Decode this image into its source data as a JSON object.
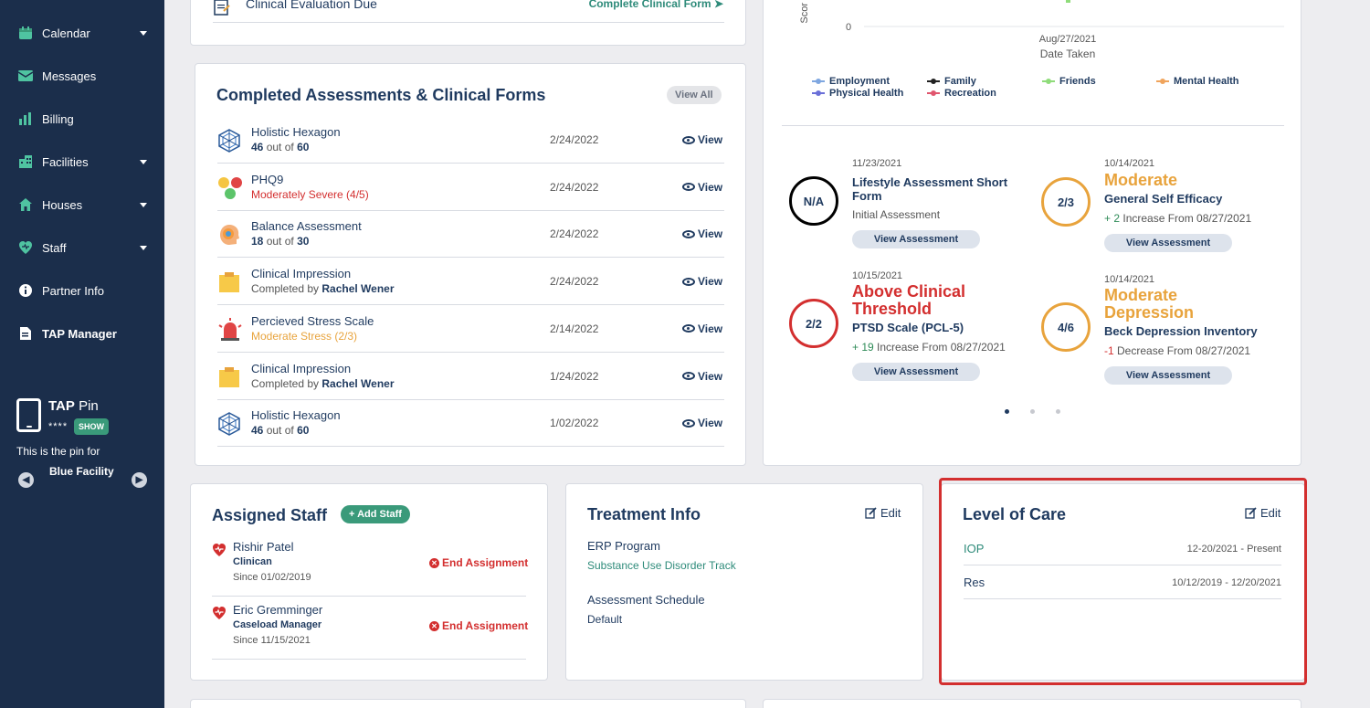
{
  "sidebar": {
    "items": [
      {
        "label": "Calendar",
        "icon": "calendar-icon",
        "has_caret": true
      },
      {
        "label": "Messages",
        "icon": "mail-icon",
        "has_caret": false
      },
      {
        "label": "Billing",
        "icon": "bar-chart-icon",
        "has_caret": false
      },
      {
        "label": "Facilities",
        "icon": "building-icon",
        "has_caret": true
      },
      {
        "label": "Houses",
        "icon": "house-icon",
        "has_caret": true
      },
      {
        "label": "Staff",
        "icon": "heart-shield-icon",
        "has_caret": true
      },
      {
        "label": "Partner Info",
        "icon": "info-icon",
        "has_caret": false
      },
      {
        "label": "TAP Manager",
        "icon": "document-icon",
        "has_caret": false
      }
    ],
    "tap_pin": {
      "title_bold": "TAP",
      "title_rest": "Pin",
      "pin_masked": "****",
      "show_label": "SHOW",
      "desc": "This is the pin for",
      "facility": "Blue Facility"
    }
  },
  "top_card": {
    "item_label": "Clinical Evaluation Due",
    "action_label": "Complete Clinical Form"
  },
  "assessments": {
    "title": "Completed Assessments & Clinical Forms",
    "view_all": "View All",
    "view_label": "View",
    "rows": [
      {
        "name": "Holistic Hexagon",
        "score": "46",
        "mid": "out of",
        "total": "60",
        "date": "2/24/2022",
        "icon": "hexagon-icon"
      },
      {
        "name": "PHQ9",
        "status": "Moderately Severe (4/5)",
        "status_color": "#d32f2f",
        "date": "2/24/2022",
        "icon": "faces-icon"
      },
      {
        "name": "Balance Assessment",
        "score": "18",
        "mid": "out of",
        "total": "30",
        "date": "2/24/2022",
        "icon": "head-icon"
      },
      {
        "name": "Clinical Impression",
        "prefix": "Completed by",
        "by": "Rachel Wener",
        "date": "2/24/2022",
        "icon": "note-icon"
      },
      {
        "name": "Percieved Stress Scale",
        "status": "Moderate Stress (2/3)",
        "status_color": "#e8a33c",
        "date": "2/14/2022",
        "icon": "alarm-icon"
      },
      {
        "name": "Clinical Impression",
        "prefix": "Completed by",
        "by": "Rachel Wener",
        "date": "1/24/2022",
        "icon": "note-icon"
      },
      {
        "name": "Holistic Hexagon",
        "score": "46",
        "mid": "out of",
        "total": "60",
        "date": "1/02/2022",
        "icon": "hexagon-icon"
      }
    ]
  },
  "chart_data": {
    "type": "line",
    "y_tick": "0",
    "x_tick": "Aug/27/2021",
    "xlabel": "Date Taken",
    "ylabel_fragment": "Scor",
    "legend": [
      {
        "name": "Employment",
        "color": "#7fa7e0"
      },
      {
        "name": "Family",
        "color": "#222222"
      },
      {
        "name": "Friends",
        "color": "#8fdc7a"
      },
      {
        "name": "Mental Health",
        "color": "#f0a45c"
      },
      {
        "name": "Physical Health",
        "color": "#6a6fd8"
      },
      {
        "name": "Recreation",
        "color": "#e0566e"
      }
    ]
  },
  "results": [
    {
      "ring": "N/A",
      "ring_color": "#000000",
      "date": "11/23/2021",
      "level": "",
      "name": "Lifestyle Assessment Short Form",
      "change_prefix": "",
      "change_num": "",
      "change_text": "Initial Assessment",
      "button": "View Assessment"
    },
    {
      "ring": "2/3",
      "ring_color": "#e8a33c",
      "date": "10/14/2021",
      "level": "Moderate",
      "level_color": "#e8a33c",
      "name": "General Self Efficacy",
      "change_prefix": "+ ",
      "change_num": "2",
      "change_num_color": "#2e8b57",
      "change_text": " Increase From 08/27/2021",
      "button": "View Assessment"
    },
    {
      "ring": "2/2",
      "ring_color": "#d32f2f",
      "date": "10/15/2021",
      "level": "Above Clinical Threshold",
      "level_color": "#d32f2f",
      "name": "PTSD Scale (PCL-5)",
      "change_prefix": "+ ",
      "change_num": "19",
      "change_num_color": "#2e8b57",
      "change_text": " Increase From 08/27/2021",
      "button": "View Assessment"
    },
    {
      "ring": "4/6",
      "ring_color": "#e8a33c",
      "date": "10/14/2021",
      "level": "Moderate Depression",
      "level_color": "#e8a33c",
      "name": "Beck Depression Inventory",
      "change_prefix": "",
      "change_num": "-1",
      "change_num_color": "#d32f2f",
      "change_text": " Decrease From 08/27/2021",
      "button": "View Assessment"
    }
  ],
  "assigned_staff": {
    "title": "Assigned Staff",
    "add_label": "+ Add Staff",
    "end_label": "End Assignment",
    "rows": [
      {
        "name": "Rishir Patel",
        "role": "Clinican",
        "since": "Since 01/02/2019"
      },
      {
        "name": "Eric Gremminger",
        "role": "Caseload Manager",
        "since": "Since 11/15/2021"
      }
    ]
  },
  "treatment_info": {
    "title": "Treatment Info",
    "edit_label": "Edit",
    "program_label": "ERP Program",
    "program_value": "Substance Use Disorder Track",
    "schedule_label": "Assessment Schedule",
    "schedule_value": "Default"
  },
  "level_of_care": {
    "title": "Level of Care",
    "edit_label": "Edit",
    "rows": [
      {
        "name": "IOP",
        "range": "12-20/2021 - Present",
        "color": "#2e8b7a"
      },
      {
        "name": "Res",
        "range": "10/12/2019 - 12/20/2021",
        "color": "#1f3a5f"
      }
    ]
  }
}
